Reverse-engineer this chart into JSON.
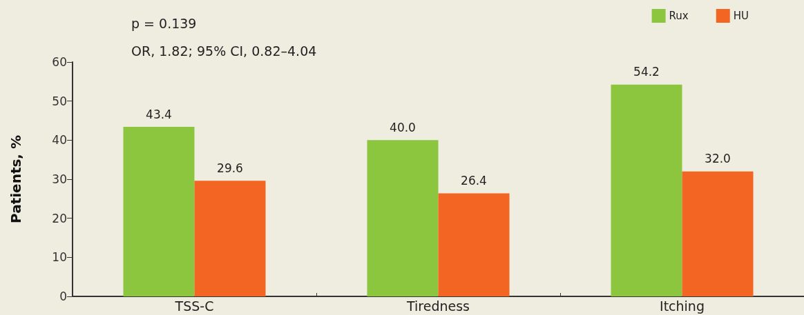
{
  "chart_data": {
    "type": "bar",
    "ylabel": "Patients, %",
    "categories": [
      "TSS-C",
      "Tiredness",
      "Itching"
    ],
    "series": [
      {
        "name": "Rux",
        "color": "#8cc63f",
        "values": [
          43.4,
          40.0,
          54.2
        ],
        "value_labels": [
          "43.4",
          "40.0",
          "54.2"
        ]
      },
      {
        "name": "HU",
        "color": "#f26522",
        "values": [
          29.6,
          26.4,
          32.0
        ],
        "value_labels": [
          "29.6",
          "26.4",
          "32.0"
        ]
      }
    ],
    "ylim": [
      0,
      60
    ],
    "yticks": [
      0,
      10,
      20,
      30,
      40,
      50,
      60
    ],
    "grid": false,
    "legend": "top right",
    "annotations": [
      "p = 0.139",
      "OR, 1.82; 95% CI, 0.82–4.04"
    ]
  }
}
